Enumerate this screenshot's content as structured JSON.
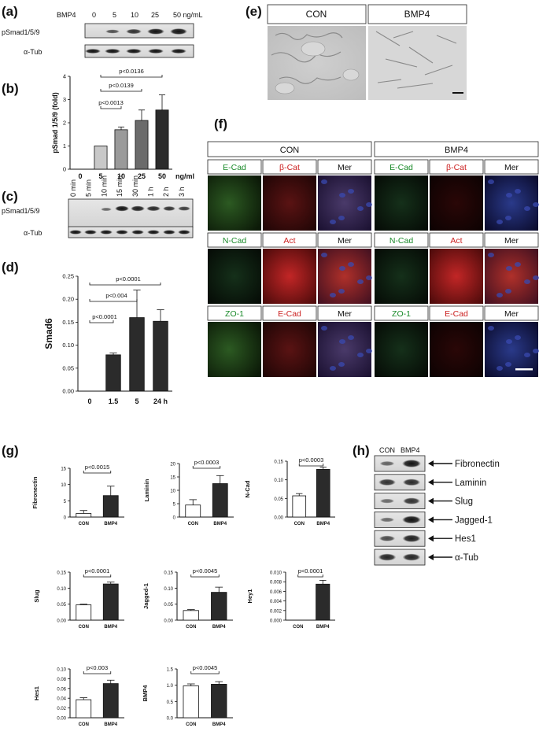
{
  "panels": {
    "a": {
      "label": "(a)",
      "row_label": "BMP4",
      "doses": [
        "0",
        "5",
        "10",
        "25",
        "50 ng/mL"
      ],
      "blots": [
        "pSmad1/5/9",
        "α-Tub"
      ]
    },
    "b": {
      "label": "(b)",
      "chart_data": {
        "type": "bar",
        "categories": [
          "0",
          "5",
          "10",
          "25",
          "50"
        ],
        "x_unit": "ng/ml",
        "values": [
          0,
          1.0,
          1.7,
          2.1,
          2.55
        ],
        "errors": [
          0,
          0,
          0.12,
          0.45,
          0.65
        ],
        "ylabel": "pSmad 1/5/9 (fold)",
        "ylim": [
          0,
          4
        ],
        "yticks": [
          "0",
          "1",
          "2",
          "3",
          "4"
        ],
        "bar_colors": [
          "#c8c8c8",
          "#c8c8c8",
          "#9a9a9a",
          "#6b6b6b",
          "#2b2b2b"
        ],
        "pvalues": [
          {
            "text": "p<0.0013",
            "from": "5",
            "to": "10"
          },
          {
            "text": "p<0.0139",
            "from": "5",
            "to": "25"
          },
          {
            "text": "p<0.0136",
            "from": "5",
            "to": "50"
          }
        ]
      }
    },
    "c": {
      "label": "(c)",
      "times": [
        "0 min",
        "5 min",
        "10 min",
        "15 min",
        "30 min",
        "1 h",
        "2 h",
        "3 h"
      ],
      "blots": [
        "pSmad1/5/9",
        "α-Tub"
      ]
    },
    "d": {
      "label": "(d)",
      "chart_data": {
        "type": "bar",
        "categories": [
          "0",
          "1.5",
          "5",
          "24 h"
        ],
        "values": [
          0.0,
          0.079,
          0.16,
          0.152
        ],
        "errors": [
          0,
          0.004,
          0.06,
          0.025
        ],
        "ylabel": "Smad6",
        "ylim": [
          0,
          0.25
        ],
        "yticks": [
          "0.00",
          "0.05",
          "0.10",
          "0.15",
          "0.20",
          "0.25"
        ],
        "bar_color": "#2b2b2b",
        "pvalues": [
          {
            "text": "p<0.0001",
            "from": "0",
            "to": "1.5"
          },
          {
            "text": "p<0.004",
            "from": "0",
            "to": "5"
          },
          {
            "text": "p<0.0001",
            "from": "0",
            "to": "24 h"
          }
        ]
      }
    },
    "e": {
      "label": "(e)",
      "headers": [
        "CON",
        "BMP4"
      ]
    },
    "f": {
      "label": "(f)",
      "headers": [
        "CON",
        "BMP4"
      ],
      "rows": [
        [
          "E-Cad",
          "β-Cat",
          "Mer"
        ],
        [
          "N-Cad",
          "Act",
          "Mer"
        ],
        [
          "ZO-1",
          "E-Cad",
          "Mer"
        ]
      ]
    },
    "g": {
      "label": "(g)",
      "chart_data": [
        {
          "type": "bar",
          "ylabel": "Fibronectin",
          "categories": [
            "CON",
            "BMP4"
          ],
          "values": [
            1.1,
            6.6
          ],
          "errors": [
            0.9,
            2.9
          ],
          "ylim": [
            0,
            15
          ],
          "yticks": [
            "0",
            "5",
            "10",
            "15"
          ],
          "pvalue": "p<0.0015"
        },
        {
          "type": "bar",
          "ylabel": "Laminin",
          "categories": [
            "CON",
            "BMP4"
          ],
          "values": [
            4.5,
            12.5
          ],
          "errors": [
            2.0,
            3.0
          ],
          "ylim": [
            0,
            20
          ],
          "yticks": [
            "0",
            "5",
            "10",
            "15",
            "20"
          ],
          "pvalue": "p<0.0003"
        },
        {
          "type": "bar",
          "ylabel": "N-Cad",
          "categories": [
            "CON",
            "BMP4"
          ],
          "values": [
            0.057,
            0.128
          ],
          "errors": [
            0.006,
            0.006
          ],
          "ylim": [
            0,
            0.15
          ],
          "yticks": [
            "0.00",
            "0.05",
            "0.10",
            "0.15"
          ],
          "pvalue": "p<0.0003"
        },
        {
          "type": "bar",
          "ylabel": "Slug",
          "categories": [
            "CON",
            "BMP4"
          ],
          "values": [
            0.048,
            0.113
          ],
          "errors": [
            0.002,
            0.006
          ],
          "ylim": [
            0,
            0.15
          ],
          "yticks": [
            "0.00",
            "0.05",
            "0.10",
            "0.15"
          ],
          "pvalue": "p<0.0001"
        },
        {
          "type": "bar",
          "ylabel": "Jagged-1",
          "categories": [
            "CON",
            "BMP4"
          ],
          "values": [
            0.03,
            0.087
          ],
          "errors": [
            0.003,
            0.016
          ],
          "ylim": [
            0,
            0.15
          ],
          "yticks": [
            "0.00",
            "0.05",
            "0.10",
            "0.15"
          ],
          "pvalue": "p<0.0045"
        },
        {
          "type": "bar",
          "ylabel": "Hey1",
          "categories": [
            "CON",
            "BMP4"
          ],
          "values": [
            0.0,
            0.0075
          ],
          "errors": [
            0,
            0.0008
          ],
          "ylim": [
            0,
            0.01
          ],
          "yticks": [
            "0.000",
            "0.002",
            "0.004",
            "0.006",
            "0.008",
            "0.010"
          ],
          "pvalue": "p<0.0001"
        },
        {
          "type": "bar",
          "ylabel": "Hes1",
          "categories": [
            "CON",
            "BMP4"
          ],
          "values": [
            0.037,
            0.07
          ],
          "errors": [
            0.004,
            0.007
          ],
          "ylim": [
            0,
            0.1
          ],
          "yticks": [
            "0.00",
            "0.02",
            "0.04",
            "0.06",
            "0.08",
            "0.10"
          ],
          "pvalue": "p<0.003"
        },
        {
          "type": "bar",
          "ylabel": "BMP4",
          "categories": [
            "CON",
            "BMP4"
          ],
          "values": [
            0.98,
            1.03
          ],
          "errors": [
            0.06,
            0.08
          ],
          "ylim": [
            0,
            1.5
          ],
          "yticks": [
            "0.0",
            "0.5",
            "1.0",
            "1.5"
          ],
          "pvalue": "p<0.0045"
        }
      ]
    },
    "h": {
      "label": "(h)",
      "headers": [
        "CON",
        "BMP4"
      ],
      "blots": [
        "Fibronectin",
        "Laminin",
        "Slug",
        "Jagged-1",
        "Hes1",
        "α-Tub"
      ]
    }
  },
  "colors": {
    "green_label": "#1a8a2a",
    "red_label": "#cc2222",
    "bar_dark": "#2b2b2b",
    "bar_open": "#ffffff"
  }
}
